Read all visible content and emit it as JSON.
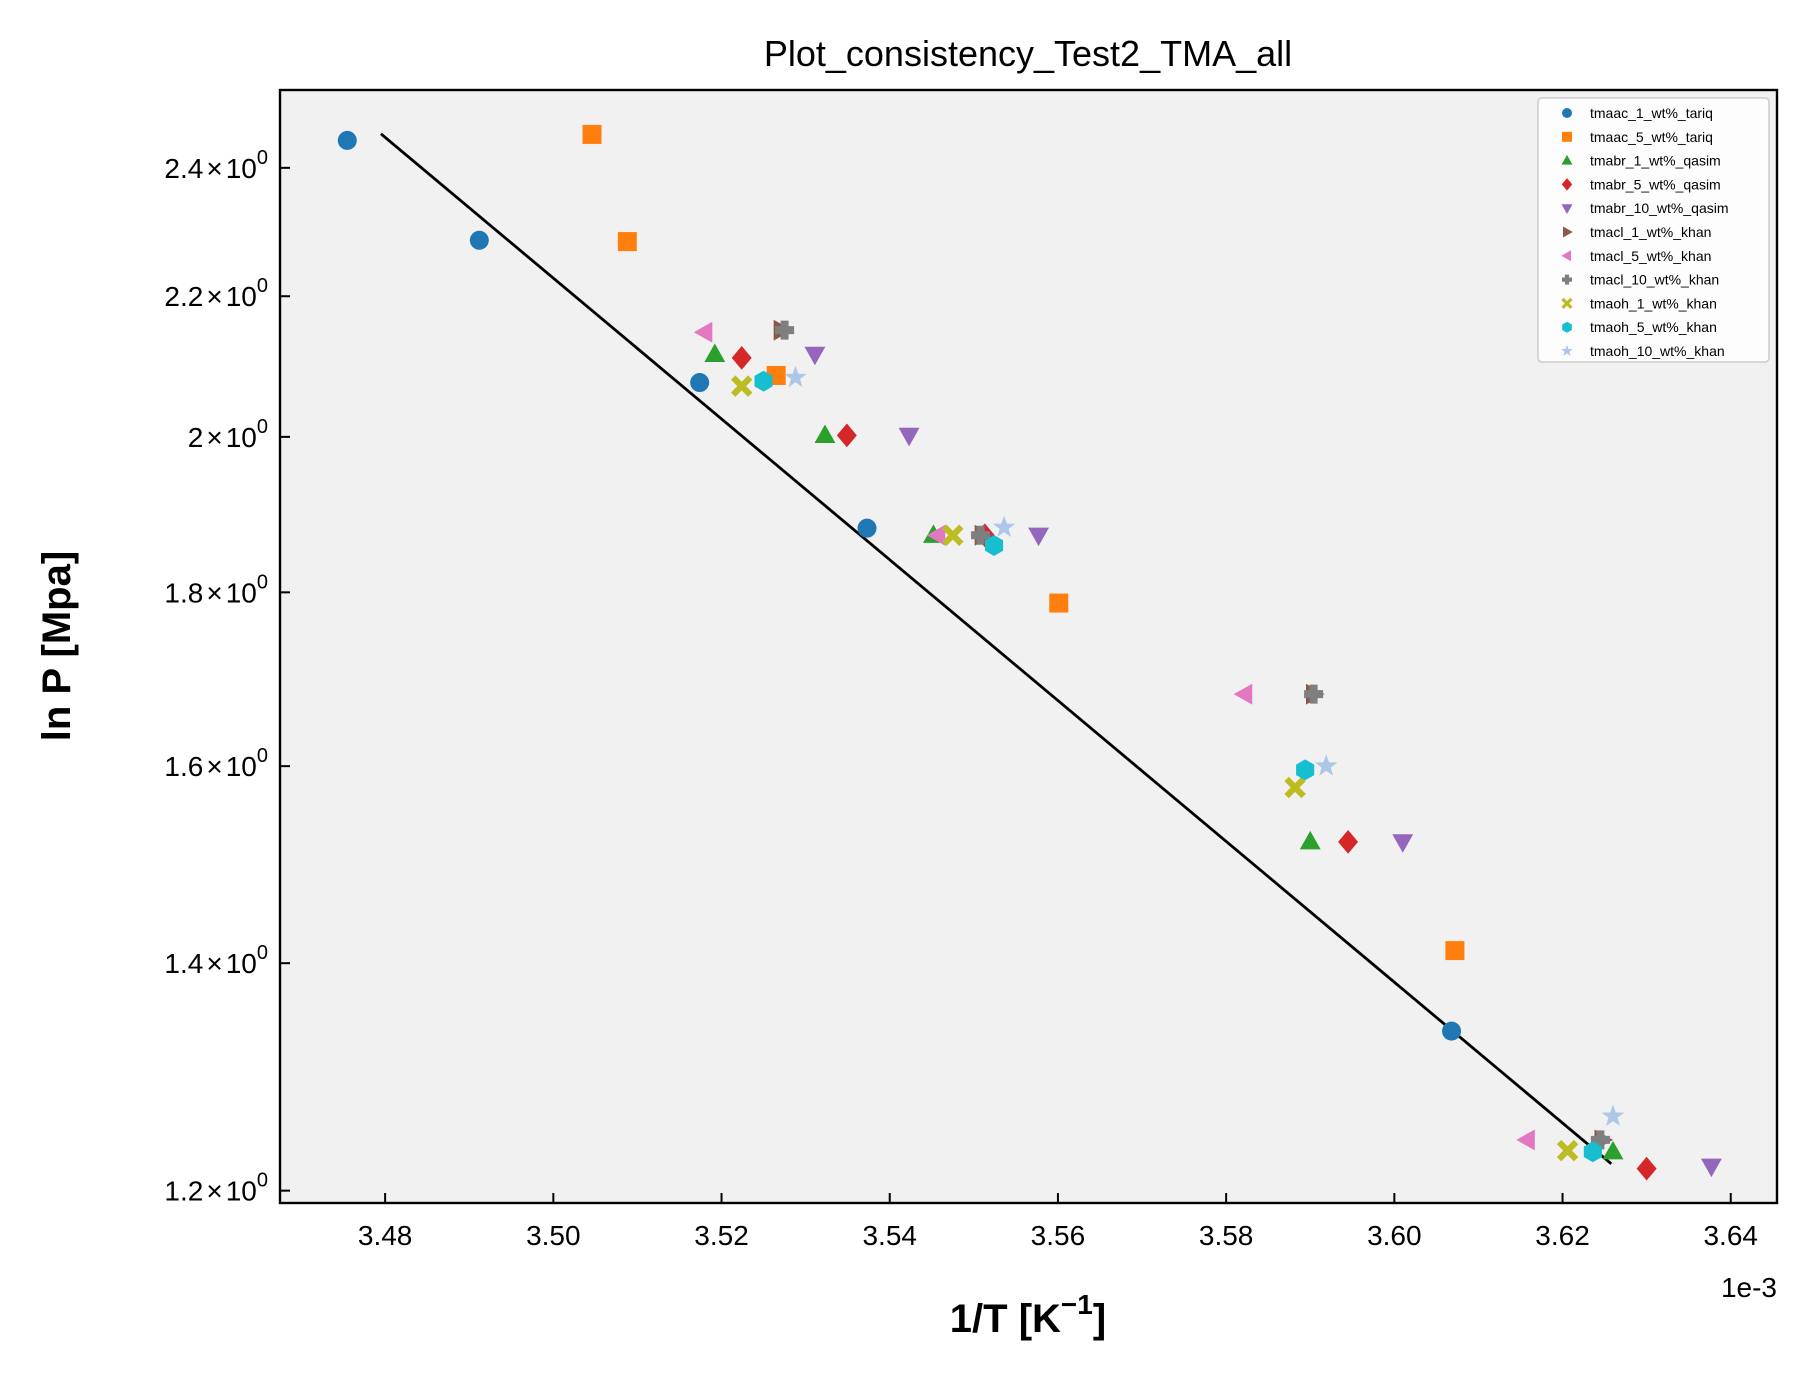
{
  "chart_data": {
    "type": "scatter",
    "title": "Plot_consistency_Test2_TMA_all",
    "xlabel": "1/T [K",
    "xlabel_sup": "−1",
    "xlabel_close": "]",
    "ylabel": "ln P [Mpa]",
    "x_offset_text": "1e-3",
    "xlim": [
      3.4675,
      3.6455
    ],
    "ylim": [
      1.19,
      2.53
    ],
    "yscale": "log",
    "x_unit_scale": 0.001,
    "background": "#f1f1f1",
    "grid": false,
    "legend_position": "top-right",
    "x_ticks": [
      {
        "value": 3.48,
        "label": "3.48"
      },
      {
        "value": 3.5,
        "label": "3.50"
      },
      {
        "value": 3.52,
        "label": "3.52"
      },
      {
        "value": 3.54,
        "label": "3.54"
      },
      {
        "value": 3.56,
        "label": "3.56"
      },
      {
        "value": 3.58,
        "label": "3.58"
      },
      {
        "value": 3.6,
        "label": "3.60"
      },
      {
        "value": 3.62,
        "label": "3.62"
      },
      {
        "value": 3.64,
        "label": "3.64"
      }
    ],
    "y_ticks": [
      {
        "value": 1.2,
        "mant": "1.2",
        "base": "10",
        "exp": "0"
      },
      {
        "value": 1.4,
        "mant": "1.4",
        "base": "10",
        "exp": "0"
      },
      {
        "value": 1.6,
        "mant": "1.6",
        "base": "10",
        "exp": "0"
      },
      {
        "value": 1.8,
        "mant": "1.8",
        "base": "10",
        "exp": "0"
      },
      {
        "value": 2.0,
        "mant": "2",
        "base": "10",
        "exp": "0"
      },
      {
        "value": 2.2,
        "mant": "2.2",
        "base": "10",
        "exp": "0"
      },
      {
        "value": 2.4,
        "mant": "2.4",
        "base": "10",
        "exp": "0"
      }
    ],
    "fit_line": {
      "color": "#000000",
      "points": [
        [
          3.4795,
          2.456
        ],
        [
          3.6258,
          1.222
        ]
      ]
    },
    "series": [
      {
        "name": "tmaac_1_wt%_tariq",
        "color": "#1f77b4",
        "marker": "circle",
        "points": [
          [
            3.4755,
            2.445
          ],
          [
            3.4912,
            2.285
          ],
          [
            3.5174,
            2.075
          ],
          [
            3.5373,
            1.88
          ],
          [
            3.6068,
            1.337
          ]
        ]
      },
      {
        "name": "tmaac_5_wt%_tariq",
        "color": "#ff7f0e",
        "marker": "square",
        "points": [
          [
            3.5046,
            2.455
          ],
          [
            3.5088,
            2.283
          ],
          [
            3.5265,
            2.085
          ],
          [
            3.5601,
            1.787
          ],
          [
            3.6072,
            1.412
          ]
        ]
      },
      {
        "name": "tmabr_1_wt%_qasim",
        "color": "#2ca02c",
        "marker": "triangle-up",
        "points": [
          [
            3.5192,
            2.115
          ],
          [
            3.5323,
            2.002
          ],
          [
            3.5452,
            1.871
          ],
          [
            3.59,
            1.52
          ],
          [
            3.626,
            1.232
          ]
        ]
      },
      {
        "name": "tmabr_5_wt%_qasim",
        "color": "#d62728",
        "marker": "diamond",
        "points": [
          [
            3.5224,
            2.11
          ],
          [
            3.5349,
            2.002
          ],
          [
            3.5513,
            1.871
          ],
          [
            3.5945,
            1.52
          ],
          [
            3.63,
            1.218
          ]
        ]
      },
      {
        "name": "tmabr_10_wt%_qasim",
        "color": "#9467bd",
        "marker": "triangle-down",
        "points": [
          [
            3.5311,
            2.115
          ],
          [
            3.5423,
            2.002
          ],
          [
            3.5577,
            1.871
          ],
          [
            3.601,
            1.52
          ],
          [
            3.6377,
            1.22
          ]
        ]
      },
      {
        "name": "tmacl_1_wt%_khan",
        "color": "#8c564b",
        "marker": "triangle-right",
        "points": [
          [
            3.5271,
            2.15
          ],
          [
            3.551,
            1.871
          ],
          [
            3.5904,
            1.68
          ],
          [
            3.6247,
            1.242
          ]
        ]
      },
      {
        "name": "tmacl_5_wt%_khan",
        "color": "#e377c2",
        "marker": "triangle-left",
        "points": [
          [
            3.518,
            2.147
          ],
          [
            3.5457,
            1.871
          ],
          [
            3.5822,
            1.68
          ],
          [
            3.6158,
            1.242
          ]
        ]
      },
      {
        "name": "tmacl_10_wt%_khan",
        "color": "#7f7f7f",
        "marker": "plus",
        "points": [
          [
            3.5275,
            2.15
          ],
          [
            3.5508,
            1.871
          ],
          [
            3.5904,
            1.68
          ],
          [
            3.6245,
            1.242
          ]
        ]
      },
      {
        "name": "tmaoh_1_wt%_khan",
        "color": "#bcbd22",
        "marker": "x",
        "points": [
          [
            3.5224,
            2.07
          ],
          [
            3.5475,
            1.871
          ],
          [
            3.5882,
            1.577
          ],
          [
            3.6206,
            1.233
          ]
        ]
      },
      {
        "name": "tmaoh_5_wt%_khan",
        "color": "#17becf",
        "marker": "hexagon",
        "points": [
          [
            3.525,
            2.077
          ],
          [
            3.5524,
            1.858
          ],
          [
            3.5894,
            1.596
          ],
          [
            3.6236,
            1.232
          ]
        ]
      },
      {
        "name": "tmaoh_10_wt%_khan",
        "color": "#aec7e8",
        "marker": "star",
        "points": [
          [
            3.5288,
            2.082
          ],
          [
            3.5536,
            1.881
          ],
          [
            3.5919,
            1.6
          ],
          [
            3.626,
            1.262
          ]
        ]
      }
    ]
  }
}
